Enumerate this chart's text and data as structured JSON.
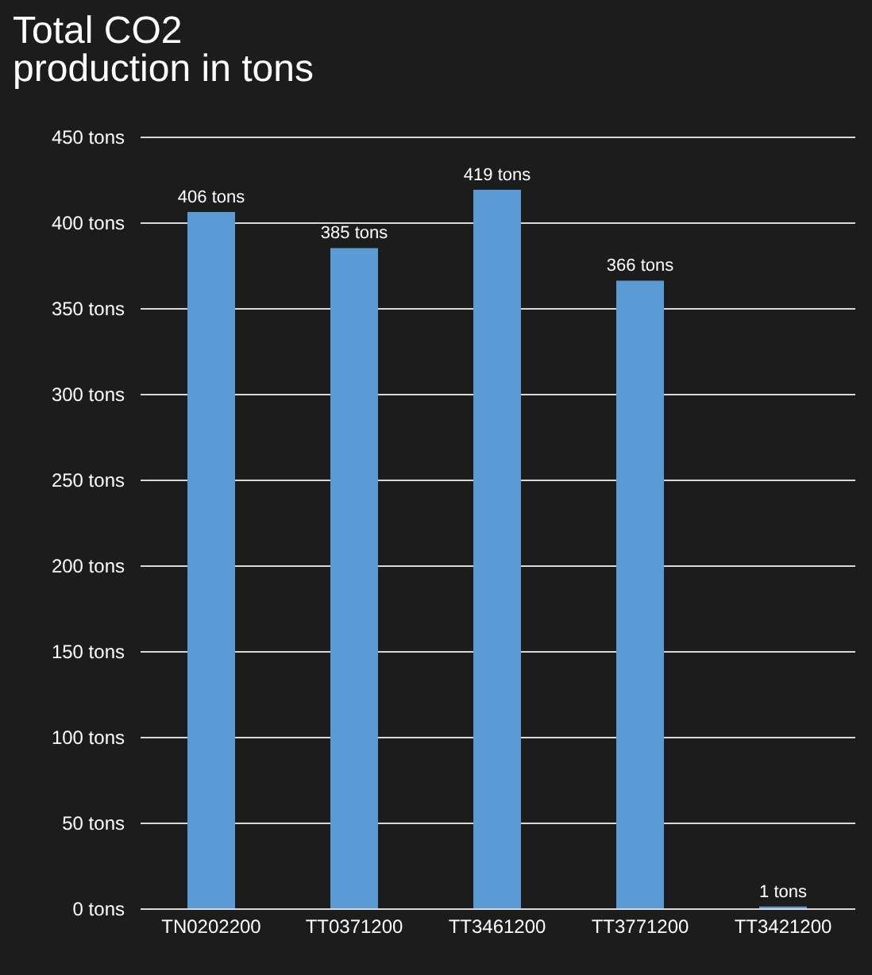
{
  "chart_data": {
    "type": "bar",
    "title": "Total CO2\nproduction in tons",
    "categories": [
      "TN0202200",
      "TT0371200",
      "TT3461200",
      "TT3771200",
      "TT3421200"
    ],
    "values": [
      406,
      385,
      419,
      366,
      1
    ],
    "value_labels": [
      "406 tons",
      "385 tons",
      "419 tons",
      "366 tons",
      "1 tons"
    ],
    "color": "#5b9bd5",
    "ylim": [
      0,
      450
    ],
    "yticks": [
      {
        "value": 0,
        "label": "0 tons"
      },
      {
        "value": 50,
        "label": "50 tons"
      },
      {
        "value": 100,
        "label": "100 tons"
      },
      {
        "value": 150,
        "label": "150 tons"
      },
      {
        "value": 200,
        "label": "200 tons"
      },
      {
        "value": 250,
        "label": "250 tons"
      },
      {
        "value": 300,
        "label": "300 tons"
      },
      {
        "value": 350,
        "label": "350 tons"
      },
      {
        "value": 400,
        "label": "400 tons"
      },
      {
        "value": 450,
        "label": "450 tons"
      }
    ],
    "grid": true
  }
}
